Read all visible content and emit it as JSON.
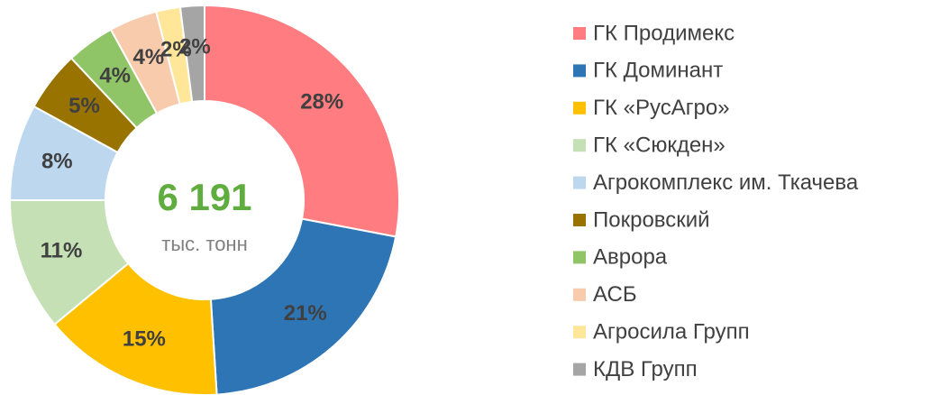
{
  "chart_data": {
    "type": "donut",
    "center_value": "6 191",
    "center_unit": "тыс. тонн",
    "categories": [
      "ГК Продимекс",
      "ГК Доминант",
      "ГК «РусАгро»",
      "ГК «Сюкден»",
      "Агрокомплекс им. Ткачева",
      "Покровский",
      "Аврора",
      "АСБ",
      "Агросила Групп",
      "КДВ Групп"
    ],
    "values": [
      28,
      21,
      15,
      11,
      8,
      5,
      4,
      4,
      2,
      2
    ],
    "value_labels": [
      "28%",
      "21%",
      "15%",
      "11%",
      "8%",
      "5%",
      "4%",
      "4%",
      "2%",
      "2%"
    ],
    "colors": [
      "#ff7c80",
      "#2e75b6",
      "#ffc000",
      "#c5e0b4",
      "#bdd7ee",
      "#997300",
      "#8fc566",
      "#f8cbad",
      "#ffe699",
      "#a5a5a5"
    ],
    "legend": "right"
  }
}
